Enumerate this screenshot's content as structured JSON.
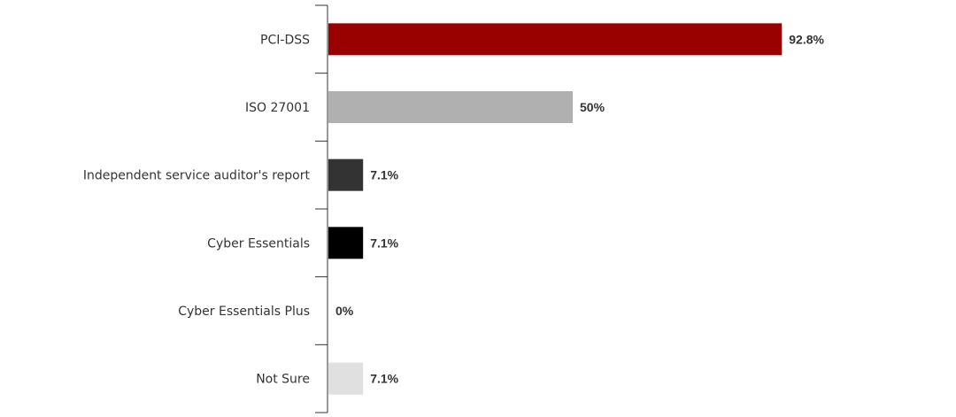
{
  "chart_data": {
    "type": "bar",
    "orientation": "horizontal",
    "categories": [
      "PCI-DSS",
      "ISO 27001",
      "Independent service auditor's report",
      "Cyber Essentials",
      "Cyber Essentials Plus",
      "Not Sure"
    ],
    "values": [
      92.8,
      50,
      7.1,
      7.1,
      0,
      7.1
    ],
    "value_labels": [
      "92.8%",
      "50%",
      "7.1%",
      "7.1%",
      "0%",
      "7.1%"
    ],
    "colors": [
      "#990000",
      "#b0b0b0",
      "#333333",
      "#000000",
      "#cccccc",
      "#e0e0e0"
    ],
    "xlim": [
      0,
      100
    ],
    "title": "",
    "xlabel": "",
    "ylabel": "",
    "grid": false,
    "legend": "none"
  }
}
